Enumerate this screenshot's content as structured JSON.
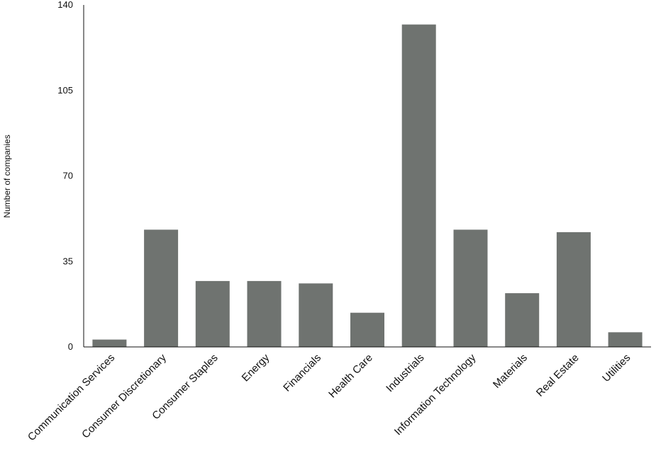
{
  "chart_data": {
    "type": "bar",
    "ylabel": "Number of companies",
    "ylim": [
      0,
      140
    ],
    "yticks": [
      0,
      35,
      70,
      105,
      140
    ],
    "grid": false,
    "bar_color": "#6f7370",
    "categories": [
      "Communication Services",
      "Consumer Discretionary",
      "Consumer Staples",
      "Energy",
      "Financials",
      "Health Care",
      "Industrials",
      "Information Technology",
      "Materials",
      "Real Estate",
      "Utilities"
    ],
    "values": [
      3,
      48,
      27,
      27,
      26,
      14,
      132,
      48,
      22,
      47,
      6
    ]
  }
}
